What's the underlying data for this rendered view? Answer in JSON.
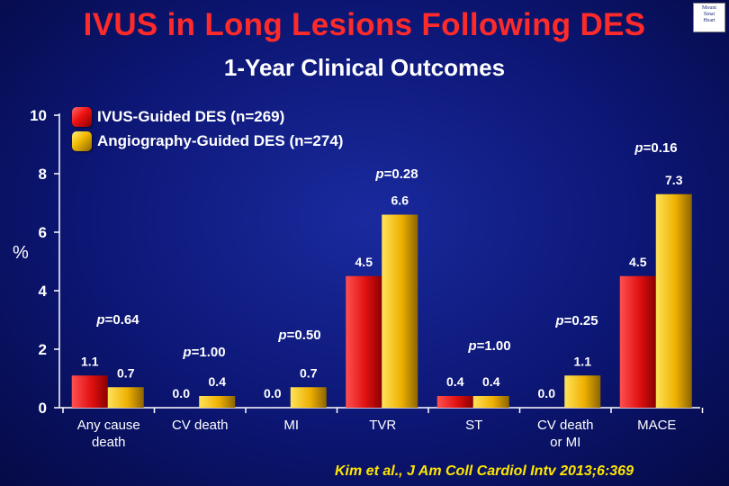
{
  "title": "IVUS in Long Lesions Following DES",
  "subtitle": "1-Year Clinical Outcomes",
  "citation": "Kim et al., J Am Coll Cardiol Intv 2013;6:369",
  "logo_text": "Mount Sinai Heart",
  "colors": {
    "ivus": "#ee1111",
    "angio": "#f0b800",
    "background": "#0c1674",
    "title": "#ff2a2a",
    "citation": "#ffe600"
  },
  "chart_data": {
    "type": "bar",
    "ylabel": "%",
    "ylim": [
      0,
      10
    ],
    "yticks": [
      "0",
      "2",
      "4",
      "6",
      "8",
      "10"
    ],
    "categories": [
      "Any cause\ndeath",
      "CV death",
      "MI",
      "TVR",
      "ST",
      "CV death\nor MI",
      "MACE"
    ],
    "series": [
      {
        "name": "IVUS-Guided DES (n=269)",
        "values": [
          1.1,
          0.0,
          0.0,
          4.5,
          0.4,
          0.0,
          4.5
        ],
        "labels": [
          "1.1",
          "0.0",
          "0.0",
          "4.5",
          "0.4",
          "0.0",
          "4.5"
        ]
      },
      {
        "name": "Angiography-Guided DES (n=274)",
        "values": [
          0.7,
          0.4,
          0.7,
          6.6,
          0.4,
          1.1,
          7.3
        ],
        "labels": [
          "0.7",
          "0.4",
          "0.7",
          "6.6",
          "0.4",
          "1.1",
          "7.3"
        ]
      }
    ],
    "p_values": [
      "=0.64",
      "=1.00",
      "=0.50",
      "=0.28",
      "=1.00",
      "=0.25",
      "=0.16"
    ],
    "grid": false,
    "legend": "top-left"
  }
}
